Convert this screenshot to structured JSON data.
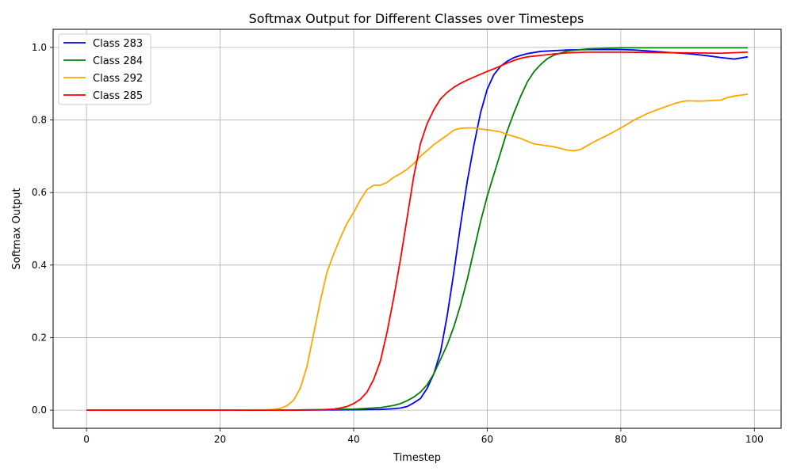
{
  "chart_data": {
    "type": "line",
    "title": "Softmax Output for Different Classes over Timesteps",
    "xlabel": "Timestep",
    "ylabel": "Softmax Output",
    "xlim": [
      -5,
      104
    ],
    "ylim": [
      -0.05,
      1.05
    ],
    "x_ticks": [
      0,
      20,
      40,
      60,
      80,
      100
    ],
    "x_tick_labels": [
      "0",
      "20",
      "40",
      "60",
      "80",
      "100"
    ],
    "y_ticks": [
      0.0,
      0.2,
      0.4,
      0.6,
      0.8,
      1.0
    ],
    "y_tick_labels": [
      "0.0",
      "0.2",
      "0.4",
      "0.6",
      "0.8",
      "1.0"
    ],
    "grid": true,
    "legend_position": "top-left",
    "series": [
      {
        "name": "Class 283",
        "color": "#0000ff",
        "x": [
          0,
          10,
          20,
          30,
          40,
          44,
          46,
          47,
          48,
          49,
          50,
          51,
          52,
          53,
          54,
          55,
          56,
          57,
          58,
          59,
          60,
          61,
          62,
          63,
          64,
          65,
          66,
          67,
          68,
          70,
          72,
          75,
          80,
          82,
          85,
          88,
          90,
          93,
          95,
          97,
          99
        ],
        "y": [
          0.0,
          0.0,
          0.0,
          0.0,
          0.001,
          0.002,
          0.004,
          0.006,
          0.01,
          0.02,
          0.032,
          0.06,
          0.1,
          0.16,
          0.26,
          0.38,
          0.51,
          0.63,
          0.73,
          0.82,
          0.885,
          0.925,
          0.948,
          0.962,
          0.972,
          0.978,
          0.983,
          0.986,
          0.989,
          0.991,
          0.993,
          0.994,
          0.994,
          0.993,
          0.989,
          0.985,
          0.983,
          0.977,
          0.972,
          0.968,
          0.974
        ]
      },
      {
        "name": "Class 284",
        "color": "#008000",
        "x": [
          0,
          10,
          20,
          30,
          40,
          44,
          46,
          47,
          48,
          49,
          50,
          51,
          52,
          53,
          54,
          55,
          56,
          57,
          58,
          59,
          60,
          61,
          62,
          63,
          64,
          65,
          66,
          67,
          68,
          69,
          70,
          72,
          75,
          80,
          85,
          90,
          95,
          99
        ],
        "y": [
          0.0,
          0.0,
          0.0,
          0.0,
          0.003,
          0.007,
          0.013,
          0.018,
          0.026,
          0.036,
          0.05,
          0.07,
          0.1,
          0.14,
          0.18,
          0.23,
          0.29,
          0.36,
          0.44,
          0.52,
          0.59,
          0.65,
          0.71,
          0.77,
          0.82,
          0.865,
          0.905,
          0.933,
          0.953,
          0.969,
          0.979,
          0.99,
          0.996,
          0.999,
          0.999,
          0.999,
          0.999,
          0.999
        ]
      },
      {
        "name": "Class 292",
        "color": "#ffa500",
        "x": [
          0,
          10,
          20,
          27,
          28,
          29,
          30,
          31,
          32,
          33,
          34,
          35,
          36,
          37,
          38,
          39,
          40,
          41,
          42,
          43,
          44,
          45,
          46,
          47,
          48,
          49,
          50,
          51,
          52,
          53,
          54,
          55,
          56,
          57,
          58,
          59,
          60,
          62,
          63,
          65,
          67,
          70,
          72,
          73,
          74,
          76,
          78,
          80,
          82,
          84,
          86,
          88,
          89,
          90,
          92,
          93,
          95,
          96,
          97,
          99
        ],
        "y": [
          0.0,
          0.0,
          0.0,
          0.001,
          0.002,
          0.005,
          0.012,
          0.027,
          0.06,
          0.12,
          0.21,
          0.3,
          0.38,
          0.43,
          0.475,
          0.515,
          0.545,
          0.58,
          0.608,
          0.62,
          0.62,
          0.628,
          0.642,
          0.652,
          0.664,
          0.68,
          0.7,
          0.716,
          0.732,
          0.745,
          0.758,
          0.772,
          0.777,
          0.778,
          0.778,
          0.775,
          0.773,
          0.767,
          0.76,
          0.749,
          0.734,
          0.726,
          0.717,
          0.715,
          0.719,
          0.74,
          0.758,
          0.778,
          0.8,
          0.818,
          0.832,
          0.845,
          0.85,
          0.853,
          0.852,
          0.853,
          0.855,
          0.862,
          0.866,
          0.871
        ]
      },
      {
        "name": "Class 285",
        "color": "#ff0000",
        "x": [
          0,
          10,
          20,
          30,
          35,
          37,
          38,
          39,
          40,
          41,
          42,
          43,
          44,
          45,
          46,
          47,
          48,
          49,
          50,
          51,
          52,
          53,
          54,
          55,
          56,
          57,
          58,
          59,
          60,
          61,
          62,
          63,
          64,
          65,
          66,
          68,
          70,
          72,
          75,
          80,
          85,
          90,
          95,
          99
        ],
        "y": [
          0.0,
          0.0,
          0.0,
          0.0,
          0.001,
          0.003,
          0.006,
          0.01,
          0.018,
          0.03,
          0.05,
          0.085,
          0.135,
          0.215,
          0.31,
          0.415,
          0.53,
          0.645,
          0.735,
          0.79,
          0.828,
          0.858,
          0.876,
          0.89,
          0.901,
          0.91,
          0.918,
          0.926,
          0.934,
          0.941,
          0.949,
          0.957,
          0.964,
          0.97,
          0.974,
          0.978,
          0.982,
          0.985,
          0.987,
          0.987,
          0.986,
          0.985,
          0.984,
          0.987
        ]
      }
    ]
  }
}
